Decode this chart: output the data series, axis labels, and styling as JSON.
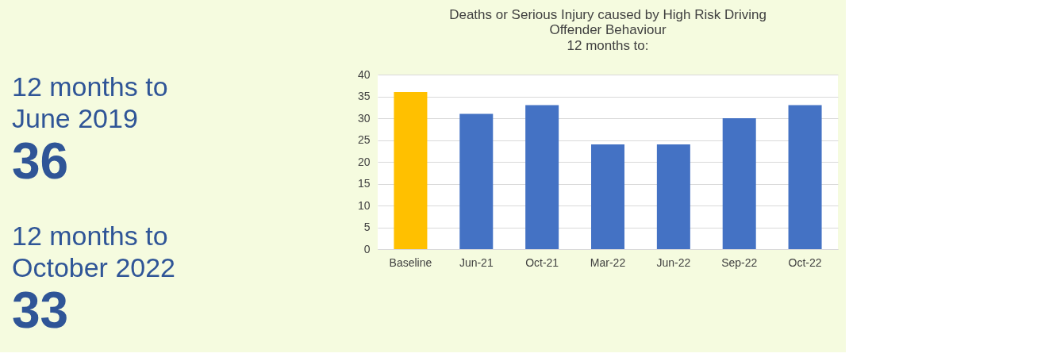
{
  "chart_data": [
    {
      "type": "other",
      "annotations": [
        "12 months to\nJune 2019",
        "36",
        "12 months to\nOctober 2022",
        "33"
      ]
    },
    {
      "type": "bar",
      "title": [
        "Deaths or Serious Injury caused by High Risk Driving",
        "Offender Behaviour"
      ],
      "subtitle": "12 months to:",
      "categories": [
        "Baseline",
        "Jun-21",
        "Oct-21",
        "Mar-22",
        "Jun-22",
        "Sep-22",
        "Oct-22"
      ],
      "values": [
        36,
        31,
        33,
        24,
        24,
        30,
        33
      ],
      "colors": [
        "#ffc000",
        "#4472c4",
        "#4472c4",
        "#4472c4",
        "#4472c4",
        "#4472c4",
        "#4472c4"
      ],
      "ylim": [
        0,
        40
      ],
      "yticks": [
        0,
        5,
        10,
        15,
        20,
        25,
        30,
        35,
        40
      ],
      "grid": "y"
    }
  ]
}
